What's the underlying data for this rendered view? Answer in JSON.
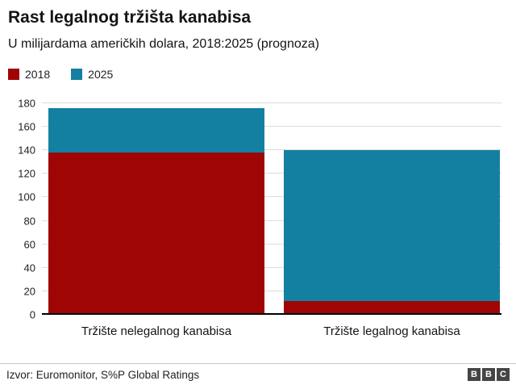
{
  "header": {
    "title": "Rast legalnog tržišta kanabisa",
    "subtitle": "U milijardama američkih dolara, 2018:2025 (prognoza)"
  },
  "chart_data": {
    "type": "bar",
    "subtype": "overlapped",
    "categories": [
      "Tržište nelegalnog kanabisa",
      "Tržište legalnog kanabisa"
    ],
    "series": [
      {
        "name": "2018",
        "color": "#a00505",
        "values": [
          138,
          12
        ]
      },
      {
        "name": "2025",
        "color": "#1380a1",
        "values": [
          176,
          140
        ]
      }
    ],
    "ylim": [
      0,
      180
    ],
    "ytick_step": 20,
    "grid": true,
    "legend_position": "top-left",
    "xlabel": "",
    "ylabel": ""
  },
  "footer": {
    "source": "Izvor: Euromonitor, S%P Global Ratings",
    "logo_letters": [
      "B",
      "B",
      "C"
    ],
    "logo_block_color": "#454545"
  }
}
